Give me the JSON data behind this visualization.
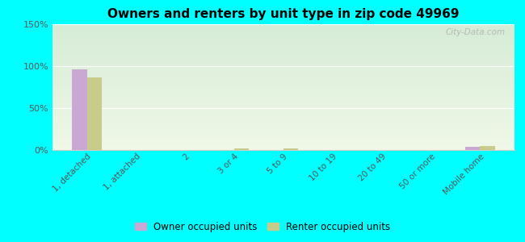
{
  "title": "Owners and renters by unit type in zip code 49969",
  "categories": [
    "1, detached",
    "1, attached",
    "2",
    "3 or 4",
    "5 to 9",
    "10 to 19",
    "20 to 49",
    "50 or more",
    "Mobile home"
  ],
  "owner_values": [
    96,
    0,
    0,
    0,
    0,
    0,
    0,
    0,
    4
  ],
  "renter_values": [
    87,
    0,
    0,
    2,
    2,
    0,
    0,
    0,
    5
  ],
  "owner_color": "#c9a8d4",
  "renter_color": "#c8cc8a",
  "background_color": "#00ffff",
  "grad_top": "#d6ecd6",
  "grad_bottom": "#f0f8e8",
  "ylim": [
    0,
    150
  ],
  "yticks": [
    0,
    50,
    100,
    150
  ],
  "ytick_labels": [
    "0%",
    "50%",
    "100%",
    "150%"
  ],
  "bar_width": 0.3,
  "legend_owner": "Owner occupied units",
  "legend_renter": "Renter occupied units",
  "watermark": "City-Data.com"
}
